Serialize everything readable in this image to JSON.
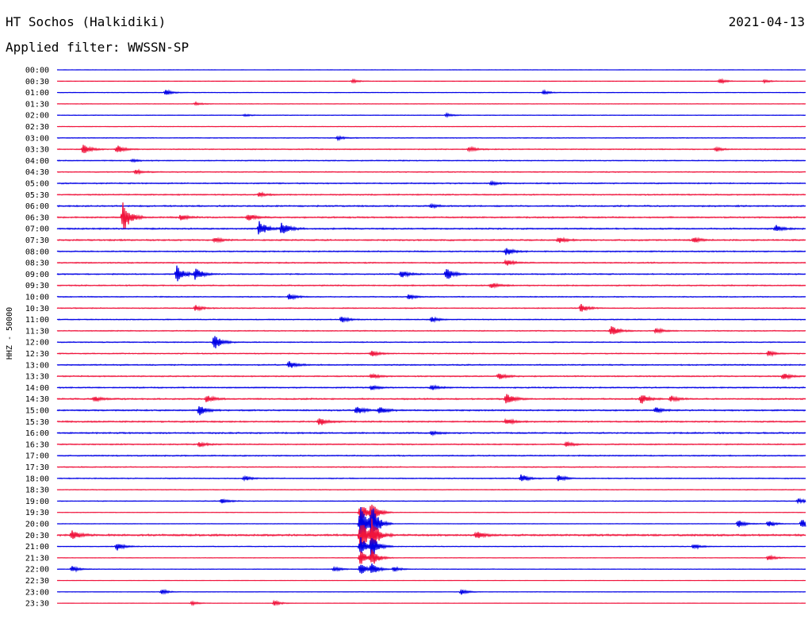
{
  "header": {
    "station": "HT Sochos (Halkidiki)",
    "date": "2021-04-13",
    "filter": "Applied filter: WWSSN-SP"
  },
  "colors": {
    "trace_a": "#0000e6",
    "trace_b": "#f0143c",
    "background": "#ffffff",
    "text": "#000000"
  },
  "chart_data": {
    "type": "line",
    "ylabel": "HHZ - 50000",
    "row_labels": [
      "00:00",
      "00:30",
      "01:00",
      "01:30",
      "02:00",
      "02:30",
      "03:00",
      "03:30",
      "04:00",
      "04:30",
      "05:00",
      "05:30",
      "06:00",
      "06:30",
      "07:00",
      "07:30",
      "08:00",
      "08:30",
      "09:00",
      "09:30",
      "10:00",
      "10:30",
      "11:00",
      "11:30",
      "12:00",
      "12:30",
      "13:00",
      "13:30",
      "14:00",
      "14:30",
      "15:00",
      "15:30",
      "16:00",
      "16:30",
      "17:00",
      "17:30",
      "18:00",
      "18:30",
      "19:00",
      "19:30",
      "20:00",
      "20:30",
      "21:00",
      "21:30",
      "22:00",
      "22:30",
      "23:00",
      "23:30"
    ],
    "row_colors": [
      "blue",
      "red"
    ],
    "noise_level": [
      0.1,
      0.1,
      0.2,
      0.2,
      0.2,
      0.2,
      0.3,
      0.4,
      0.4,
      0.4,
      0.5,
      0.5,
      0.6,
      0.6,
      0.6,
      0.6,
      0.5,
      0.5,
      0.5,
      0.5,
      0.4,
      0.4,
      0.4,
      0.4,
      0.4,
      0.4,
      0.5,
      0.5,
      0.5,
      0.6,
      0.6,
      0.6,
      0.6,
      0.5,
      0.5,
      0.4,
      0.4,
      0.3,
      0.3,
      0.2,
      0.2,
      0.8,
      0.3,
      0.2,
      0.2,
      0.1,
      0.1,
      0.1
    ],
    "events": [
      {
        "row": 1,
        "t": 0.395,
        "amp": 0.35
      },
      {
        "row": 1,
        "t": 0.885,
        "amp": 0.5
      },
      {
        "row": 1,
        "t": 0.945,
        "amp": 0.3
      },
      {
        "row": 2,
        "t": 0.145,
        "amp": 0.5
      },
      {
        "row": 2,
        "t": 0.65,
        "amp": 0.35
      },
      {
        "row": 3,
        "t": 0.185,
        "amp": 0.3
      },
      {
        "row": 4,
        "t": 0.52,
        "amp": 0.35
      },
      {
        "row": 4,
        "t": 0.25,
        "amp": 0.2
      },
      {
        "row": 6,
        "t": 0.375,
        "amp": 0.35
      },
      {
        "row": 7,
        "t": 0.035,
        "amp": 1.0
      },
      {
        "row": 7,
        "t": 0.08,
        "amp": 0.8
      },
      {
        "row": 7,
        "t": 0.55,
        "amp": 0.5
      },
      {
        "row": 7,
        "t": 0.88,
        "amp": 0.4
      },
      {
        "row": 8,
        "t": 0.1,
        "amp": 0.25
      },
      {
        "row": 9,
        "t": 0.105,
        "amp": 0.5
      },
      {
        "row": 10,
        "t": 0.58,
        "amp": 0.4
      },
      {
        "row": 11,
        "t": 0.27,
        "amp": 0.4
      },
      {
        "row": 12,
        "t": 0.5,
        "amp": 0.3
      },
      {
        "row": 13,
        "t": 0.088,
        "amp": 3.2
      },
      {
        "row": 13,
        "t": 0.165,
        "amp": 0.6
      },
      {
        "row": 13,
        "t": 0.255,
        "amp": 0.7
      },
      {
        "row": 14,
        "t": 0.27,
        "amp": 1.6
      },
      {
        "row": 14,
        "t": 0.3,
        "amp": 1.3
      },
      {
        "row": 14,
        "t": 0.96,
        "amp": 0.7
      },
      {
        "row": 15,
        "t": 0.21,
        "amp": 0.5
      },
      {
        "row": 15,
        "t": 0.67,
        "amp": 0.6
      },
      {
        "row": 15,
        "t": 0.85,
        "amp": 0.6
      },
      {
        "row": 16,
        "t": 0.6,
        "amp": 0.8
      },
      {
        "row": 17,
        "t": 0.6,
        "amp": 0.7
      },
      {
        "row": 18,
        "t": 0.16,
        "amp": 1.7
      },
      {
        "row": 18,
        "t": 0.185,
        "amp": 1.3
      },
      {
        "row": 18,
        "t": 0.46,
        "amp": 0.8
      },
      {
        "row": 18,
        "t": 0.52,
        "amp": 1.3
      },
      {
        "row": 19,
        "t": 0.58,
        "amp": 0.5
      },
      {
        "row": 20,
        "t": 0.31,
        "amp": 0.6
      },
      {
        "row": 20,
        "t": 0.47,
        "amp": 0.5
      },
      {
        "row": 21,
        "t": 0.185,
        "amp": 0.6
      },
      {
        "row": 21,
        "t": 0.7,
        "amp": 0.8
      },
      {
        "row": 22,
        "t": 0.38,
        "amp": 0.6
      },
      {
        "row": 22,
        "t": 0.5,
        "amp": 0.5
      },
      {
        "row": 23,
        "t": 0.74,
        "amp": 1.2
      },
      {
        "row": 23,
        "t": 0.8,
        "amp": 0.5
      },
      {
        "row": 24,
        "t": 0.21,
        "amp": 1.6
      },
      {
        "row": 25,
        "t": 0.42,
        "amp": 0.6
      },
      {
        "row": 25,
        "t": 0.95,
        "amp": 0.5
      },
      {
        "row": 26,
        "t": 0.31,
        "amp": 0.8
      },
      {
        "row": 27,
        "t": 0.42,
        "amp": 0.5
      },
      {
        "row": 27,
        "t": 0.59,
        "amp": 0.7
      },
      {
        "row": 27,
        "t": 0.97,
        "amp": 0.6
      },
      {
        "row": 28,
        "t": 0.42,
        "amp": 0.5
      },
      {
        "row": 28,
        "t": 0.5,
        "amp": 0.5
      },
      {
        "row": 29,
        "t": 0.05,
        "amp": 0.6
      },
      {
        "row": 29,
        "t": 0.2,
        "amp": 0.8
      },
      {
        "row": 29,
        "t": 0.6,
        "amp": 1.2
      },
      {
        "row": 29,
        "t": 0.78,
        "amp": 1.0
      },
      {
        "row": 29,
        "t": 0.82,
        "amp": 0.6
      },
      {
        "row": 30,
        "t": 0.19,
        "amp": 1.0
      },
      {
        "row": 30,
        "t": 0.4,
        "amp": 0.9
      },
      {
        "row": 30,
        "t": 0.43,
        "amp": 0.8
      },
      {
        "row": 30,
        "t": 0.8,
        "amp": 0.5
      },
      {
        "row": 31,
        "t": 0.35,
        "amp": 0.9
      },
      {
        "row": 31,
        "t": 0.6,
        "amp": 0.6
      },
      {
        "row": 32,
        "t": 0.5,
        "amp": 0.4
      },
      {
        "row": 33,
        "t": 0.19,
        "amp": 0.5
      },
      {
        "row": 33,
        "t": 0.68,
        "amp": 0.5
      },
      {
        "row": 36,
        "t": 0.25,
        "amp": 0.5
      },
      {
        "row": 36,
        "t": 0.62,
        "amp": 0.8
      },
      {
        "row": 36,
        "t": 0.67,
        "amp": 0.6
      },
      {
        "row": 38,
        "t": 0.22,
        "amp": 0.5
      },
      {
        "row": 38,
        "t": 0.99,
        "amp": 0.5
      },
      {
        "row": 39,
        "t": 0.405,
        "amp": 2.2
      },
      {
        "row": 39,
        "t": 0.42,
        "amp": 2.0
      },
      {
        "row": 40,
        "t": 0.405,
        "amp": 4.5
      },
      {
        "row": 40,
        "t": 0.42,
        "amp": 3.5
      },
      {
        "row": 40,
        "t": 0.91,
        "amp": 0.8
      },
      {
        "row": 40,
        "t": 0.95,
        "amp": 0.7
      },
      {
        "row": 40,
        "t": 0.995,
        "amp": 1.2
      },
      {
        "row": 41,
        "t": 0.405,
        "amp": 3.5
      },
      {
        "row": 41,
        "t": 0.42,
        "amp": 3.0
      },
      {
        "row": 41,
        "t": 0.02,
        "amp": 1.0
      },
      {
        "row": 41,
        "t": 0.56,
        "amp": 0.7
      },
      {
        "row": 42,
        "t": 0.405,
        "amp": 2.0
      },
      {
        "row": 42,
        "t": 0.42,
        "amp": 2.2
      },
      {
        "row": 42,
        "t": 0.08,
        "amp": 0.8
      },
      {
        "row": 42,
        "t": 0.85,
        "amp": 0.5
      },
      {
        "row": 43,
        "t": 0.405,
        "amp": 1.6
      },
      {
        "row": 43,
        "t": 0.42,
        "amp": 1.6
      },
      {
        "row": 43,
        "t": 0.95,
        "amp": 0.6
      },
      {
        "row": 44,
        "t": 0.405,
        "amp": 1.2
      },
      {
        "row": 44,
        "t": 0.42,
        "amp": 1.0
      },
      {
        "row": 44,
        "t": 0.02,
        "amp": 0.6
      },
      {
        "row": 44,
        "t": 0.37,
        "amp": 0.5
      },
      {
        "row": 44,
        "t": 0.45,
        "amp": 0.5
      },
      {
        "row": 46,
        "t": 0.14,
        "amp": 0.5
      },
      {
        "row": 46,
        "t": 0.54,
        "amp": 0.6
      },
      {
        "row": 47,
        "t": 0.18,
        "amp": 0.4
      },
      {
        "row": 47,
        "t": 0.29,
        "amp": 0.5
      }
    ]
  }
}
